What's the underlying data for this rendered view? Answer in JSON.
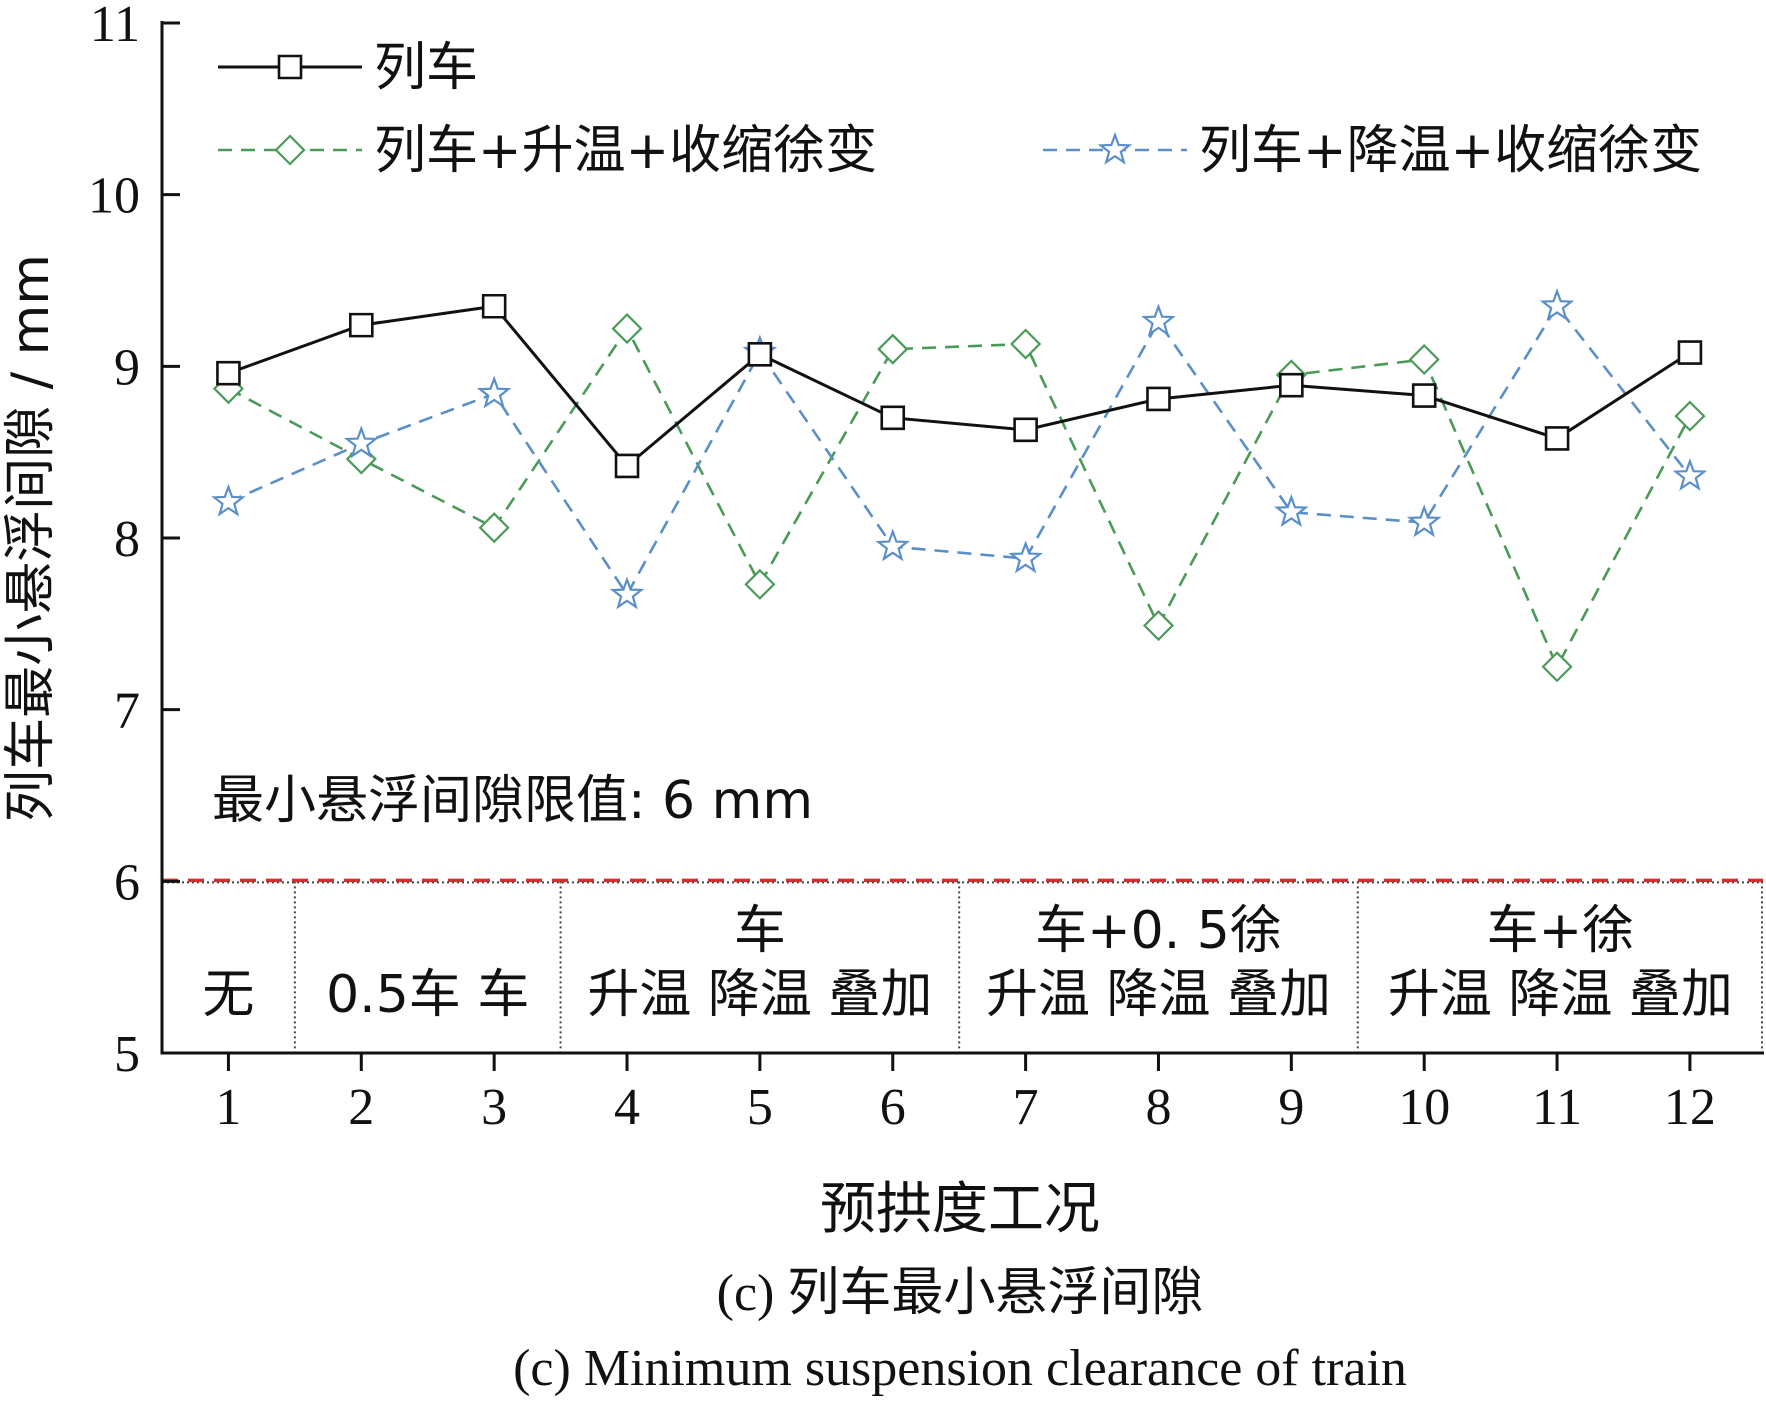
{
  "chart_data": {
    "type": "line",
    "x": [
      1,
      2,
      3,
      4,
      5,
      6,
      7,
      8,
      9,
      10,
      11,
      12
    ],
    "xlim": [
      0.5,
      12.55
    ],
    "ylim": [
      5,
      11
    ],
    "yticks": [
      5,
      6,
      7,
      8,
      9,
      10,
      11
    ],
    "ylabel": "列车最小悬浮间隙 / mm",
    "xlabel": "预拱度工况",
    "caption_cn": "(c) 列车最小悬浮间隙",
    "caption_en": "(c) Minimum suspension clearance of train",
    "series": [
      {
        "name": "列车",
        "color": "#111111",
        "dash": "solid",
        "marker": "square",
        "values": [
          8.96,
          9.24,
          9.35,
          8.42,
          9.07,
          8.7,
          8.63,
          8.81,
          8.89,
          8.83,
          8.58,
          9.08
        ]
      },
      {
        "name": "列车+升温+收缩徐变",
        "color": "#4a9a58",
        "dash": "dashed",
        "marker": "diamond",
        "values": [
          8.87,
          8.46,
          8.06,
          9.22,
          7.73,
          9.1,
          9.13,
          7.49,
          8.95,
          9.04,
          7.25,
          8.71
        ]
      },
      {
        "name": "列车+降温+收缩徐变",
        "color": "#5b8fc9",
        "dash": "dashed",
        "marker": "star",
        "values": [
          8.21,
          8.55,
          8.84,
          7.67,
          9.08,
          7.95,
          7.88,
          9.26,
          8.15,
          8.09,
          9.35,
          8.36
        ]
      }
    ],
    "limit_line": {
      "value": 6,
      "color": "#d03030",
      "label": "最小悬浮间隙限值: 6 mm"
    },
    "condition_groups": [
      {
        "from": 0.5,
        "to": 1.5,
        "top": "",
        "labels": [
          "无"
        ]
      },
      {
        "from": 1.5,
        "to": 3.5,
        "top": "",
        "labels": [
          "0.5车",
          "车"
        ]
      },
      {
        "from": 3.5,
        "to": 6.5,
        "top": "车",
        "labels": [
          "升温",
          "降温",
          "叠加"
        ]
      },
      {
        "from": 6.5,
        "to": 9.5,
        "top": "车+0. 5徐",
        "labels": [
          "升温",
          "降温",
          "叠加"
        ]
      },
      {
        "from": 9.5,
        "to": 12.55,
        "top": "车+徐",
        "labels": [
          "升温",
          "降温",
          "叠加"
        ]
      }
    ]
  }
}
